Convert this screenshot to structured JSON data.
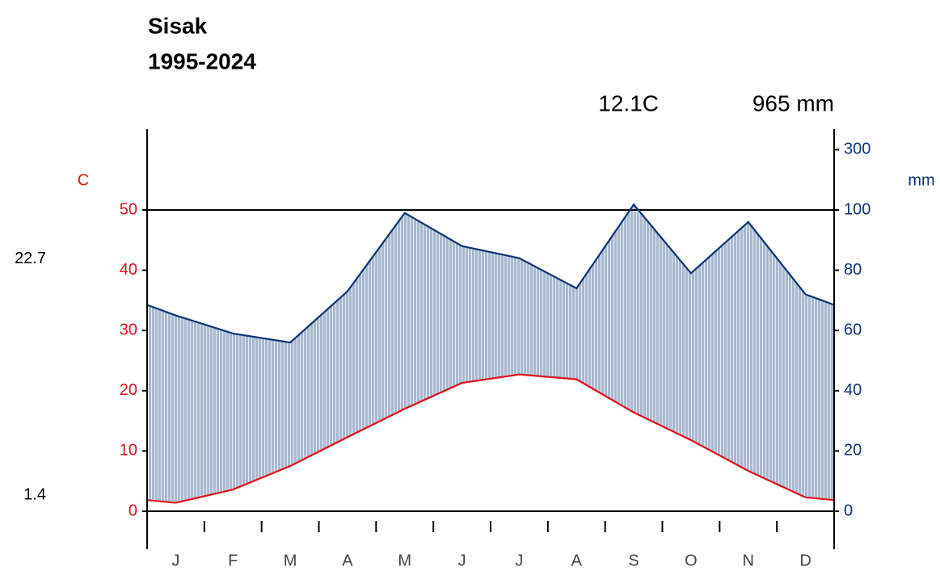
{
  "chart_data": {
    "type": "climate",
    "title": "Sisak",
    "subtitle": "1995-2024",
    "mean_temp_label": "12.1C",
    "total_precip_label": "965 mm",
    "ylabel": "C",
    "y2label": "mm",
    "temp_max": 22.7,
    "temp_min": 1.4,
    "categories": [
      "J",
      "F",
      "M",
      "A",
      "M",
      "J",
      "J",
      "A",
      "S",
      "O",
      "N",
      "D"
    ],
    "series": [
      {
        "name": "temperature",
        "color": "#e0101a",
        "values": [
          1.4,
          3.6,
          7.5,
          12.3,
          17.0,
          21.3,
          22.7,
          21.9,
          16.4,
          11.8,
          6.7,
          2.3
        ]
      },
      {
        "name": "precipitation",
        "color": "#0d3473",
        "axis": "y2",
        "values": [
          65,
          59,
          56,
          73,
          99,
          88,
          84,
          74,
          118,
          79,
          96,
          72
        ]
      }
    ],
    "fill_color": "#a9b8d0",
    "ylim": [
      -6.3,
      63.4
    ],
    "yticks": [
      0,
      10,
      20,
      30,
      40,
      50
    ],
    "y2lim": [
      -12.6,
      326.8
    ],
    "y2ticks": [
      0,
      20,
      40,
      60,
      80,
      100,
      300
    ]
  }
}
